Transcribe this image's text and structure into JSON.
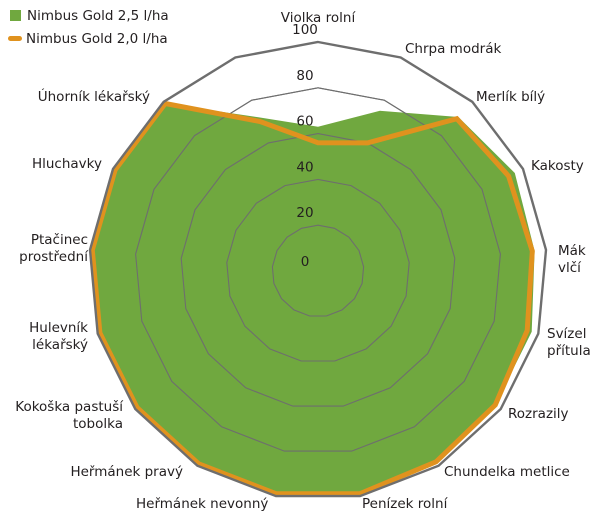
{
  "chart_data": {
    "type": "radar",
    "title": "",
    "categories": [
      "Violka rolní",
      "Chrpa modrák",
      "Merlík bílý",
      "Kakosty",
      "Mák vlčí",
      "Svízel přítula",
      "Rozrazily",
      "Chundelka metlice",
      "Penízek rolní",
      "Heřmánek nevonný",
      "Heřmánek pravý",
      "Kokoška pastuší tobolka",
      "Hulevník lékařský",
      "Ptačinec prostřední",
      "Hluchavky",
      "Úhorník lékařský",
      ""
    ],
    "series": [
      {
        "name": "Nimbus Gold 2,5 l/ha",
        "style": "filled-area",
        "color": "#70A83F",
        "values": [
          63,
          75,
          91,
          96,
          95,
          97,
          97,
          98,
          98,
          98,
          99,
          99,
          99,
          99,
          99,
          99,
          72
        ]
      },
      {
        "name": "Nimbus Gold 2,0 l/ha",
        "style": "line",
        "color": "#E0921E",
        "values": [
          56,
          60,
          90,
          93,
          94,
          95,
          97,
          98,
          99,
          99,
          99,
          99,
          99,
          99,
          99,
          99,
          70
        ]
      }
    ],
    "radial_ticks": [
      0,
      20,
      40,
      60,
      80,
      100
    ],
    "rlim": [
      0,
      100
    ],
    "grid": true,
    "grid_color": "#6E6E6E",
    "legend_position": "top-left"
  },
  "legend": {
    "items": [
      {
        "label": "Nimbus Gold 2,5 l/ha",
        "color": "#70A83F",
        "marker": "square"
      },
      {
        "label": "Nimbus Gold 2,0 l/ha",
        "color": "#E0921E",
        "marker": "line"
      }
    ]
  }
}
